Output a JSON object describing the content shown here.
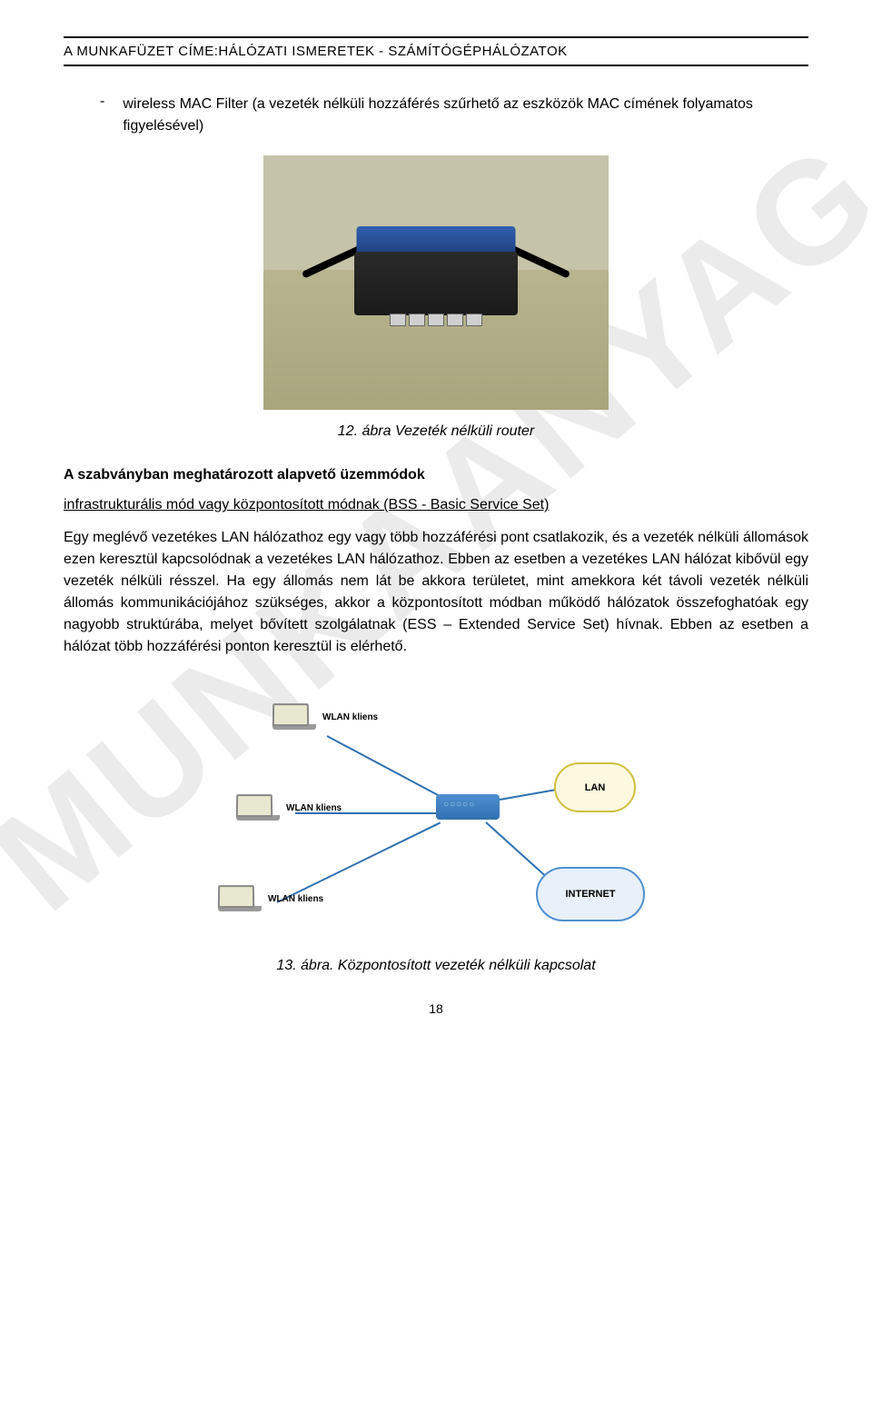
{
  "watermark": "MUNKAANYAG",
  "header": {
    "title": "A MUNKAFÜZET CÍME:HÁLÓZATI ISMERETEK - SZÁMÍTÓGÉPHÁLÓZATOK"
  },
  "bullet": {
    "dash": "-",
    "text": "wireless MAC Filter (a vezeték nélküli hozzáférés szűrhető az eszközök MAC címének folyamatos figyelésével)"
  },
  "figure1": {
    "caption": "12. ábra Vezeték nélküli router"
  },
  "section": {
    "heading": "A szabványban meghatározott alapvető üzemmódok",
    "mode_link": "infrastrukturális mód vagy központosított módnak (BSS - Basic Service Set)",
    "body": "Egy meglévő vezetékes LAN hálózathoz egy vagy több hozzáférési pont csatlakozik, és a vezeték nélküli állomások ezen keresztül kapcsolódnak a vezetékes LAN hálózathoz. Ebben az esetben a vezetékes LAN hálózat kibővül egy vezeték nélküli résszel. Ha egy állomás nem lát be akkora területet, mint amekkora két távoli vezeték nélküli állomás kommunikációjához szükséges, akkor a központosított módban működő hálózatok összefoghatóak egy nagyobb struktúrába, melyet bővített szolgálatnak (ESS – Extended Service Set) hívnak. Ebben az esetben a hálózat több hozzáférési ponton keresztül is elérhető."
  },
  "diagram": {
    "wlan_client_label": "WLAN kliens",
    "lan_label": "LAN",
    "internet_label": "INTERNET"
  },
  "figure2": {
    "caption": "13. ábra. Központosított vezeték nélküli kapcsolat"
  },
  "page_number": "18"
}
